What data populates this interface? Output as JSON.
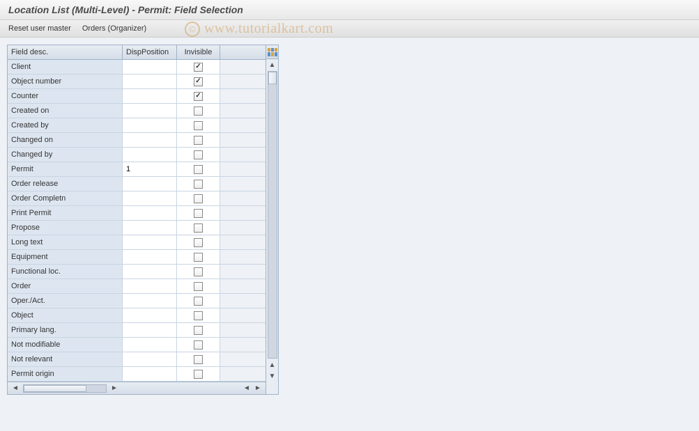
{
  "header": {
    "title": "Location List (Multi-Level) - Permit: Field Selection"
  },
  "toolbar": {
    "reset_user_master": "Reset user master",
    "orders_organizer": "Orders (Organizer)"
  },
  "table": {
    "columns": {
      "field_desc": "Field desc.",
      "disp_position": "DispPosition",
      "invisible": "Invisible"
    },
    "rows": [
      {
        "desc": "Client",
        "disp": "",
        "invisible": true
      },
      {
        "desc": "Object number",
        "disp": "",
        "invisible": true
      },
      {
        "desc": "Counter",
        "disp": "",
        "invisible": true
      },
      {
        "desc": "Created on",
        "disp": "",
        "invisible": false
      },
      {
        "desc": "Created by",
        "disp": "",
        "invisible": false
      },
      {
        "desc": "Changed on",
        "disp": "",
        "invisible": false
      },
      {
        "desc": "Changed by",
        "disp": "",
        "invisible": false
      },
      {
        "desc": "Permit",
        "disp": "1",
        "invisible": false
      },
      {
        "desc": "Order release",
        "disp": "",
        "invisible": false
      },
      {
        "desc": "Order Completn",
        "disp": "",
        "invisible": false
      },
      {
        "desc": "Print Permit",
        "disp": "",
        "invisible": false
      },
      {
        "desc": "Propose",
        "disp": "",
        "invisible": false
      },
      {
        "desc": "Long text",
        "disp": "",
        "invisible": false
      },
      {
        "desc": "Equipment",
        "disp": "",
        "invisible": false
      },
      {
        "desc": "Functional loc.",
        "disp": "",
        "invisible": false
      },
      {
        "desc": "Order",
        "disp": "",
        "invisible": false
      },
      {
        "desc": "Oper./Act.",
        "disp": "",
        "invisible": false
      },
      {
        "desc": "Object",
        "disp": "",
        "invisible": false
      },
      {
        "desc": "Primary lang.",
        "disp": "",
        "invisible": false
      },
      {
        "desc": "Not modifiable",
        "disp": "",
        "invisible": false
      },
      {
        "desc": "Not relevant",
        "disp": "",
        "invisible": false
      },
      {
        "desc": "Permit origin",
        "disp": "",
        "invisible": false
      }
    ]
  },
  "watermark": {
    "symbol": "©",
    "text": "www.tutorialkart.com"
  },
  "colors": {
    "header_bg_top": "#f8f8f8",
    "header_bg_bottom": "#e8e8e8",
    "toolbar_bg_top": "#f0f0f0",
    "toolbar_bg_bottom": "#e0e0e0",
    "content_bg": "#eef1f5",
    "border": "#9fb2c6",
    "th_bg_top": "#e8edf3",
    "th_bg_bottom": "#d5dde8",
    "row_desc_bg": "#dde6f0",
    "row_border": "#c8d4e3",
    "watermark_color": "rgba(210,160,100,0.55)"
  }
}
